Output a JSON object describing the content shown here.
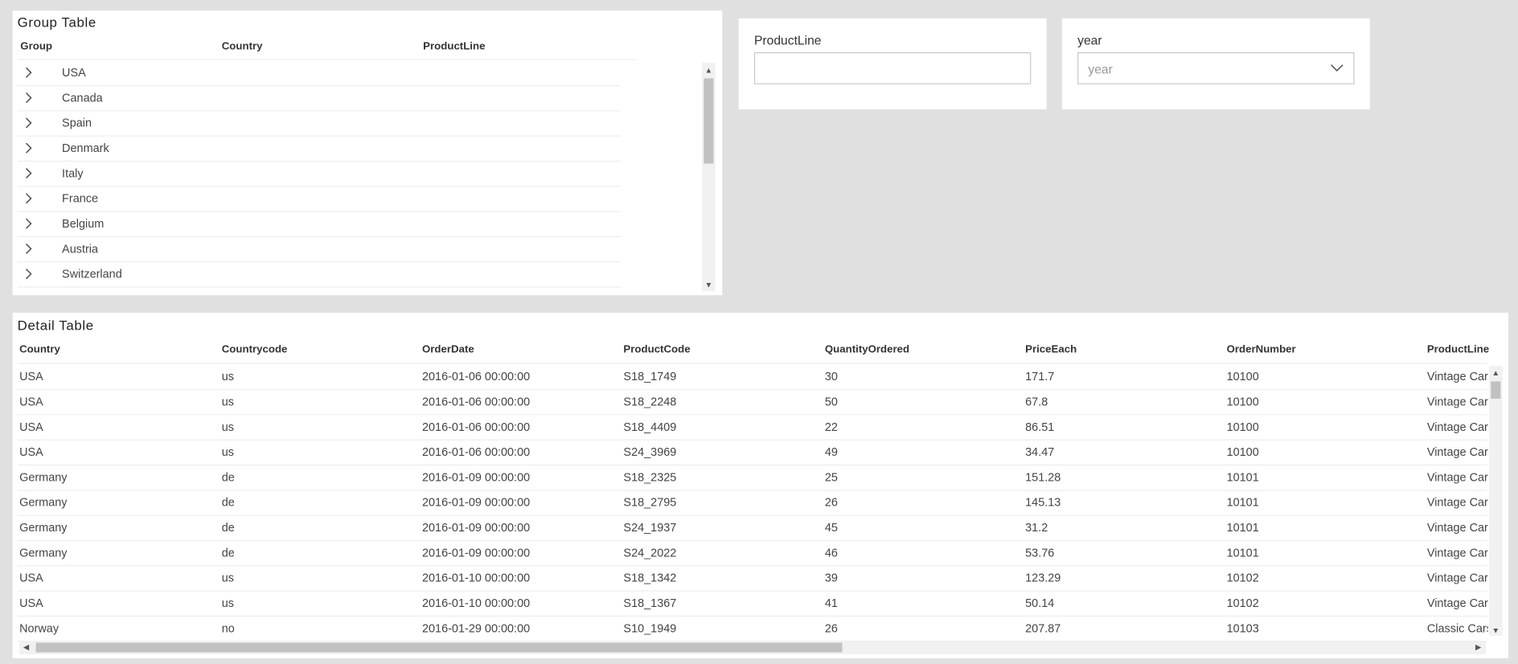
{
  "group_table": {
    "title": "Group Table",
    "columns": [
      "Group",
      "Country",
      "ProductLine"
    ],
    "rows": [
      "USA",
      "Canada",
      "Spain",
      "Denmark",
      "Italy",
      "France",
      "Belgium",
      "Austria",
      "Switzerland"
    ]
  },
  "filters": [
    {
      "label": "ProductLine"
    },
    {
      "label": "year",
      "placeholder": "year"
    }
  ],
  "detail_table": {
    "title": "Detail Table",
    "columns": [
      "Country",
      "Countrycode",
      "OrderDate",
      "ProductCode",
      "QuantityOrdered",
      "PriceEach",
      "OrderNumber",
      "ProductLine"
    ],
    "rows": [
      [
        "USA",
        "us",
        "2016-01-06 00:00:00",
        "S18_1749",
        "30",
        "171.7",
        "10100",
        "Vintage Cars"
      ],
      [
        "USA",
        "us",
        "2016-01-06 00:00:00",
        "S18_2248",
        "50",
        "67.8",
        "10100",
        "Vintage Cars"
      ],
      [
        "USA",
        "us",
        "2016-01-06 00:00:00",
        "S18_4409",
        "22",
        "86.51",
        "10100",
        "Vintage Cars"
      ],
      [
        "USA",
        "us",
        "2016-01-06 00:00:00",
        "S24_3969",
        "49",
        "34.47",
        "10100",
        "Vintage Cars"
      ],
      [
        "Germany",
        "de",
        "2016-01-09 00:00:00",
        "S18_2325",
        "25",
        "151.28",
        "10101",
        "Vintage Cars"
      ],
      [
        "Germany",
        "de",
        "2016-01-09 00:00:00",
        "S18_2795",
        "26",
        "145.13",
        "10101",
        "Vintage Cars"
      ],
      [
        "Germany",
        "de",
        "2016-01-09 00:00:00",
        "S24_1937",
        "45",
        "31.2",
        "10101",
        "Vintage Cars"
      ],
      [
        "Germany",
        "de",
        "2016-01-09 00:00:00",
        "S24_2022",
        "46",
        "53.76",
        "10101",
        "Vintage Cars"
      ],
      [
        "USA",
        "us",
        "2016-01-10 00:00:00",
        "S18_1342",
        "39",
        "123.29",
        "10102",
        "Vintage Cars"
      ],
      [
        "USA",
        "us",
        "2016-01-10 00:00:00",
        "S18_1367",
        "41",
        "50.14",
        "10102",
        "Vintage Cars"
      ],
      [
        "Norway",
        "no",
        "2016-01-29 00:00:00",
        "S10_1949",
        "26",
        "207.87",
        "10103",
        "Classic Cars"
      ]
    ]
  }
}
